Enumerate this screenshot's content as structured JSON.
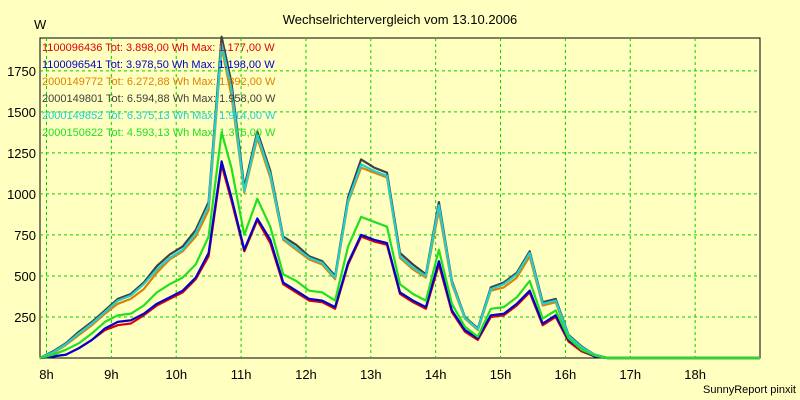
{
  "chart_data": {
    "type": "line",
    "title": "Wechselrichtervergleich vom 13.10.2006",
    "ylabel": "W",
    "footer": "SunnyReport pinxit",
    "ylim": [
      0,
      1950
    ],
    "yticks": [
      250,
      500,
      750,
      1000,
      1250,
      1500,
      1750
    ],
    "xlim": [
      7.9,
      19.0
    ],
    "xticks": [
      {
        "value": 8,
        "label": "8h"
      },
      {
        "value": 9,
        "label": "9h"
      },
      {
        "value": 10,
        "label": "10h"
      },
      {
        "value": 11,
        "label": "11h"
      },
      {
        "value": 12,
        "label": "12h"
      },
      {
        "value": 13,
        "label": "13h"
      },
      {
        "value": 14,
        "label": "14h"
      },
      {
        "value": 15,
        "label": "15h"
      },
      {
        "value": 16,
        "label": "16h"
      },
      {
        "value": 17,
        "label": "17h"
      },
      {
        "value": 18,
        "label": "18h"
      }
    ],
    "grid": true,
    "legend_position": "top-left",
    "x": [
      7.9,
      8.1,
      8.3,
      8.5,
      8.7,
      8.9,
      9.1,
      9.3,
      9.5,
      9.7,
      9.9,
      10.1,
      10.3,
      10.5,
      10.7,
      10.85,
      11.05,
      11.25,
      11.45,
      11.65,
      11.85,
      12.05,
      12.25,
      12.45,
      12.65,
      12.85,
      13.05,
      13.25,
      13.45,
      13.65,
      13.85,
      14.05,
      14.25,
      14.45,
      14.65,
      14.85,
      15.05,
      15.25,
      15.45,
      15.65,
      15.85,
      16.05,
      16.25,
      16.45,
      16.65,
      16.85,
      17.05,
      17.25,
      17.45,
      17.65,
      17.85,
      18.05,
      18.25,
      18.45,
      18.65,
      18.85,
      19.0
    ],
    "series": [
      {
        "name": "1100096436 Tot: 3.898,00 Wh Max: 1.177,00 W",
        "color": "#e00000",
        "values": [
          0,
          10,
          20,
          60,
          110,
          170,
          200,
          210,
          260,
          320,
          360,
          400,
          480,
          620,
          1177,
          960,
          650,
          840,
          700,
          450,
          400,
          350,
          340,
          300,
          570,
          740,
          710,
          690,
          390,
          340,
          300,
          570,
          280,
          160,
          110,
          250,
          260,
          320,
          400,
          200,
          250,
          100,
          40,
          10,
          0,
          0,
          0,
          0,
          0,
          0,
          0,
          0,
          0,
          0,
          0,
          0,
          0
        ]
      },
      {
        "name": "1100096541 Tot: 3.978,50 Wh Max: 1.198,00 W",
        "color": "#0000d0",
        "values": [
          0,
          10,
          20,
          60,
          110,
          180,
          220,
          230,
          270,
          330,
          370,
          410,
          490,
          640,
          1198,
          980,
          660,
          850,
          720,
          460,
          410,
          360,
          350,
          310,
          580,
          750,
          720,
          700,
          400,
          350,
          310,
          590,
          290,
          170,
          120,
          260,
          270,
          330,
          410,
          210,
          260,
          110,
          50,
          10,
          0,
          0,
          0,
          0,
          0,
          0,
          0,
          0,
          0,
          0,
          0,
          0,
          0
        ]
      },
      {
        "name": "2000149772 Tot: 6.272,88 Wh Max: 1.892,00 W",
        "color": "#e08000",
        "values": [
          0,
          30,
          80,
          140,
          200,
          270,
          330,
          360,
          420,
          520,
          600,
          650,
          740,
          900,
          1892,
          1600,
          1010,
          1340,
          1100,
          720,
          660,
          600,
          570,
          480,
          950,
          1160,
          1130,
          1100,
          610,
          540,
          490,
          900,
          450,
          240,
          170,
          410,
          430,
          490,
          620,
          320,
          340,
          130,
          60,
          20,
          0,
          0,
          0,
          0,
          0,
          0,
          0,
          0,
          0,
          0,
          0,
          0,
          0
        ]
      },
      {
        "name": "2000149801 Tot: 6.594,88 Wh Max: 1.958,00 W",
        "color": "#404040",
        "values": [
          0,
          40,
          90,
          160,
          220,
          290,
          360,
          390,
          460,
          560,
          630,
          680,
          780,
          950,
          1958,
          1680,
          1040,
          1380,
          1140,
          740,
          690,
          620,
          590,
          500,
          980,
          1210,
          1160,
          1130,
          640,
          570,
          510,
          950,
          470,
          250,
          180,
          430,
          460,
          520,
          650,
          340,
          360,
          140,
          70,
          20,
          0,
          0,
          0,
          0,
          0,
          0,
          0,
          0,
          0,
          0,
          0,
          0,
          0
        ]
      },
      {
        "name": "2000149852 Tot: 6.375,13 Wh Max: 1.914,00 W",
        "color": "#20d0d0",
        "values": [
          0,
          35,
          85,
          150,
          210,
          280,
          350,
          380,
          450,
          540,
          610,
          660,
          760,
          930,
          1914,
          1640,
          1020,
          1360,
          1120,
          730,
          670,
          610,
          580,
          490,
          960,
          1180,
          1140,
          1110,
          620,
          550,
          500,
          930,
          460,
          245,
          175,
          420,
          450,
          510,
          640,
          330,
          350,
          135,
          65,
          20,
          0,
          0,
          0,
          0,
          0,
          0,
          0,
          0,
          0,
          0,
          0,
          0,
          0
        ]
      },
      {
        "name": "2000150622 Tot: 4.593,13 Wh Max: 1.376,00 W",
        "color": "#20e020",
        "values": [
          0,
          20,
          50,
          90,
          150,
          220,
          260,
          270,
          320,
          400,
          450,
          490,
          570,
          740,
          1376,
          1160,
          750,
          970,
          800,
          510,
          470,
          410,
          400,
          350,
          680,
          860,
          830,
          800,
          450,
          390,
          350,
          660,
          330,
          190,
          130,
          300,
          310,
          370,
          470,
          240,
          290,
          120,
          50,
          15,
          0,
          0,
          0,
          0,
          0,
          0,
          0,
          0,
          0,
          0,
          0,
          0,
          0
        ]
      }
    ]
  }
}
